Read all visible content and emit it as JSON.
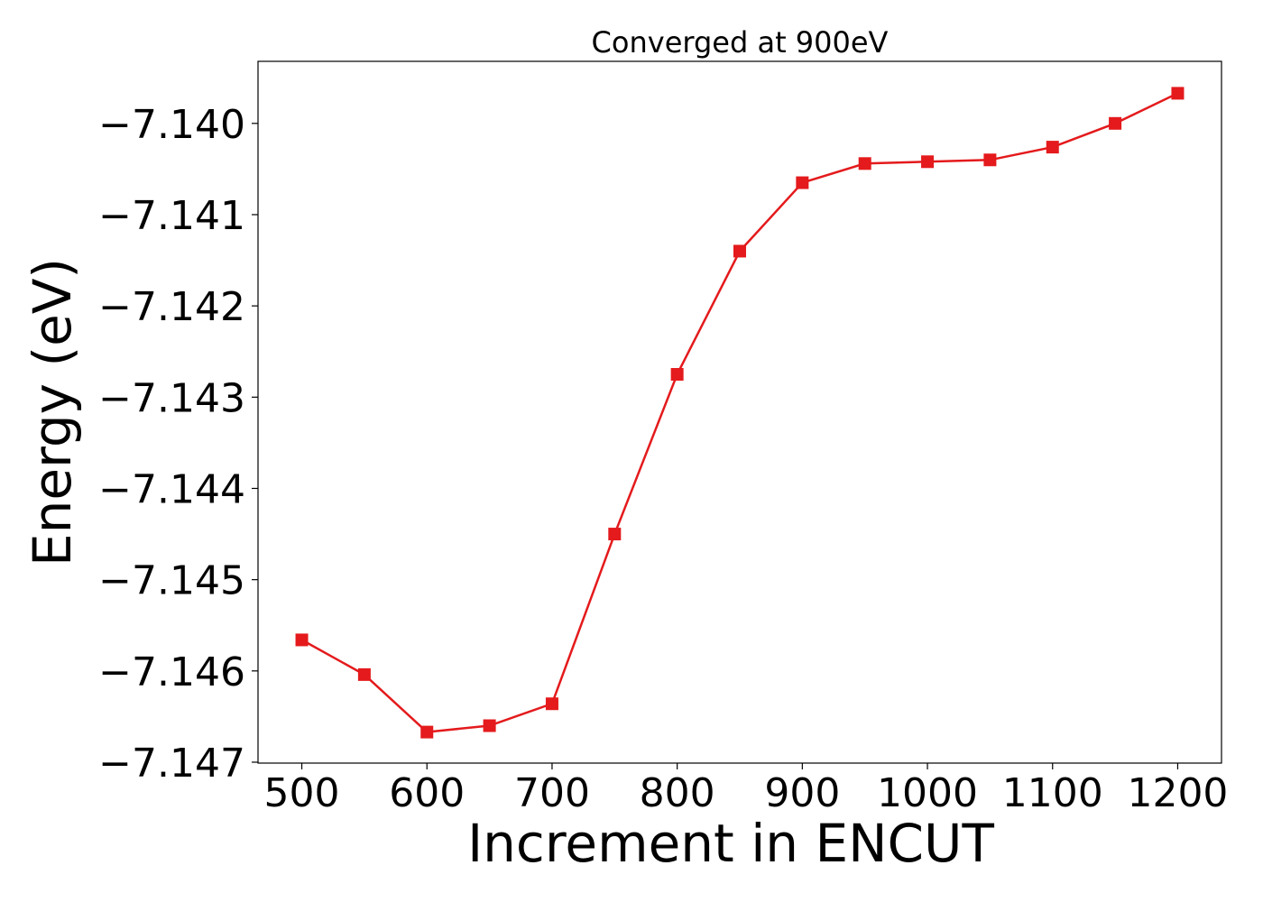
{
  "chart_data": {
    "type": "line",
    "title": "Converged at 900eV",
    "xlabel": "Increment in ENCUT",
    "ylabel": "Energy (eV)",
    "x": [
      500,
      550,
      600,
      650,
      700,
      750,
      800,
      850,
      900,
      950,
      1000,
      1050,
      1100,
      1150,
      1200
    ],
    "series": [
      {
        "values": [
          -7.14566,
          -7.14604,
          -7.14667,
          -7.1466,
          -7.14636,
          -7.1445,
          -7.14275,
          -7.1414,
          -7.14065,
          -7.14044,
          -7.14042,
          -7.1404,
          -7.14026,
          -7.14,
          -7.13967
        ],
        "color": "#e41a1c",
        "marker": "square"
      }
    ],
    "xlim": [
      465,
      1235
    ],
    "ylim": [
      -7.14701,
      -7.13932
    ],
    "xticks": [
      500,
      600,
      700,
      800,
      900,
      1000,
      1100,
      1200
    ],
    "xtick_labels": [
      "500",
      "600",
      "700",
      "800",
      "900",
      "1000",
      "1100",
      "1200"
    ],
    "yticks": [
      -7.147,
      -7.146,
      -7.145,
      -7.144,
      -7.143,
      -7.142,
      -7.141,
      -7.14
    ],
    "ytick_labels": [
      "−7.147",
      "−7.146",
      "−7.145",
      "−7.144",
      "−7.143",
      "−7.142",
      "−7.141",
      "−7.140"
    ],
    "grid": false,
    "legend": "none"
  }
}
